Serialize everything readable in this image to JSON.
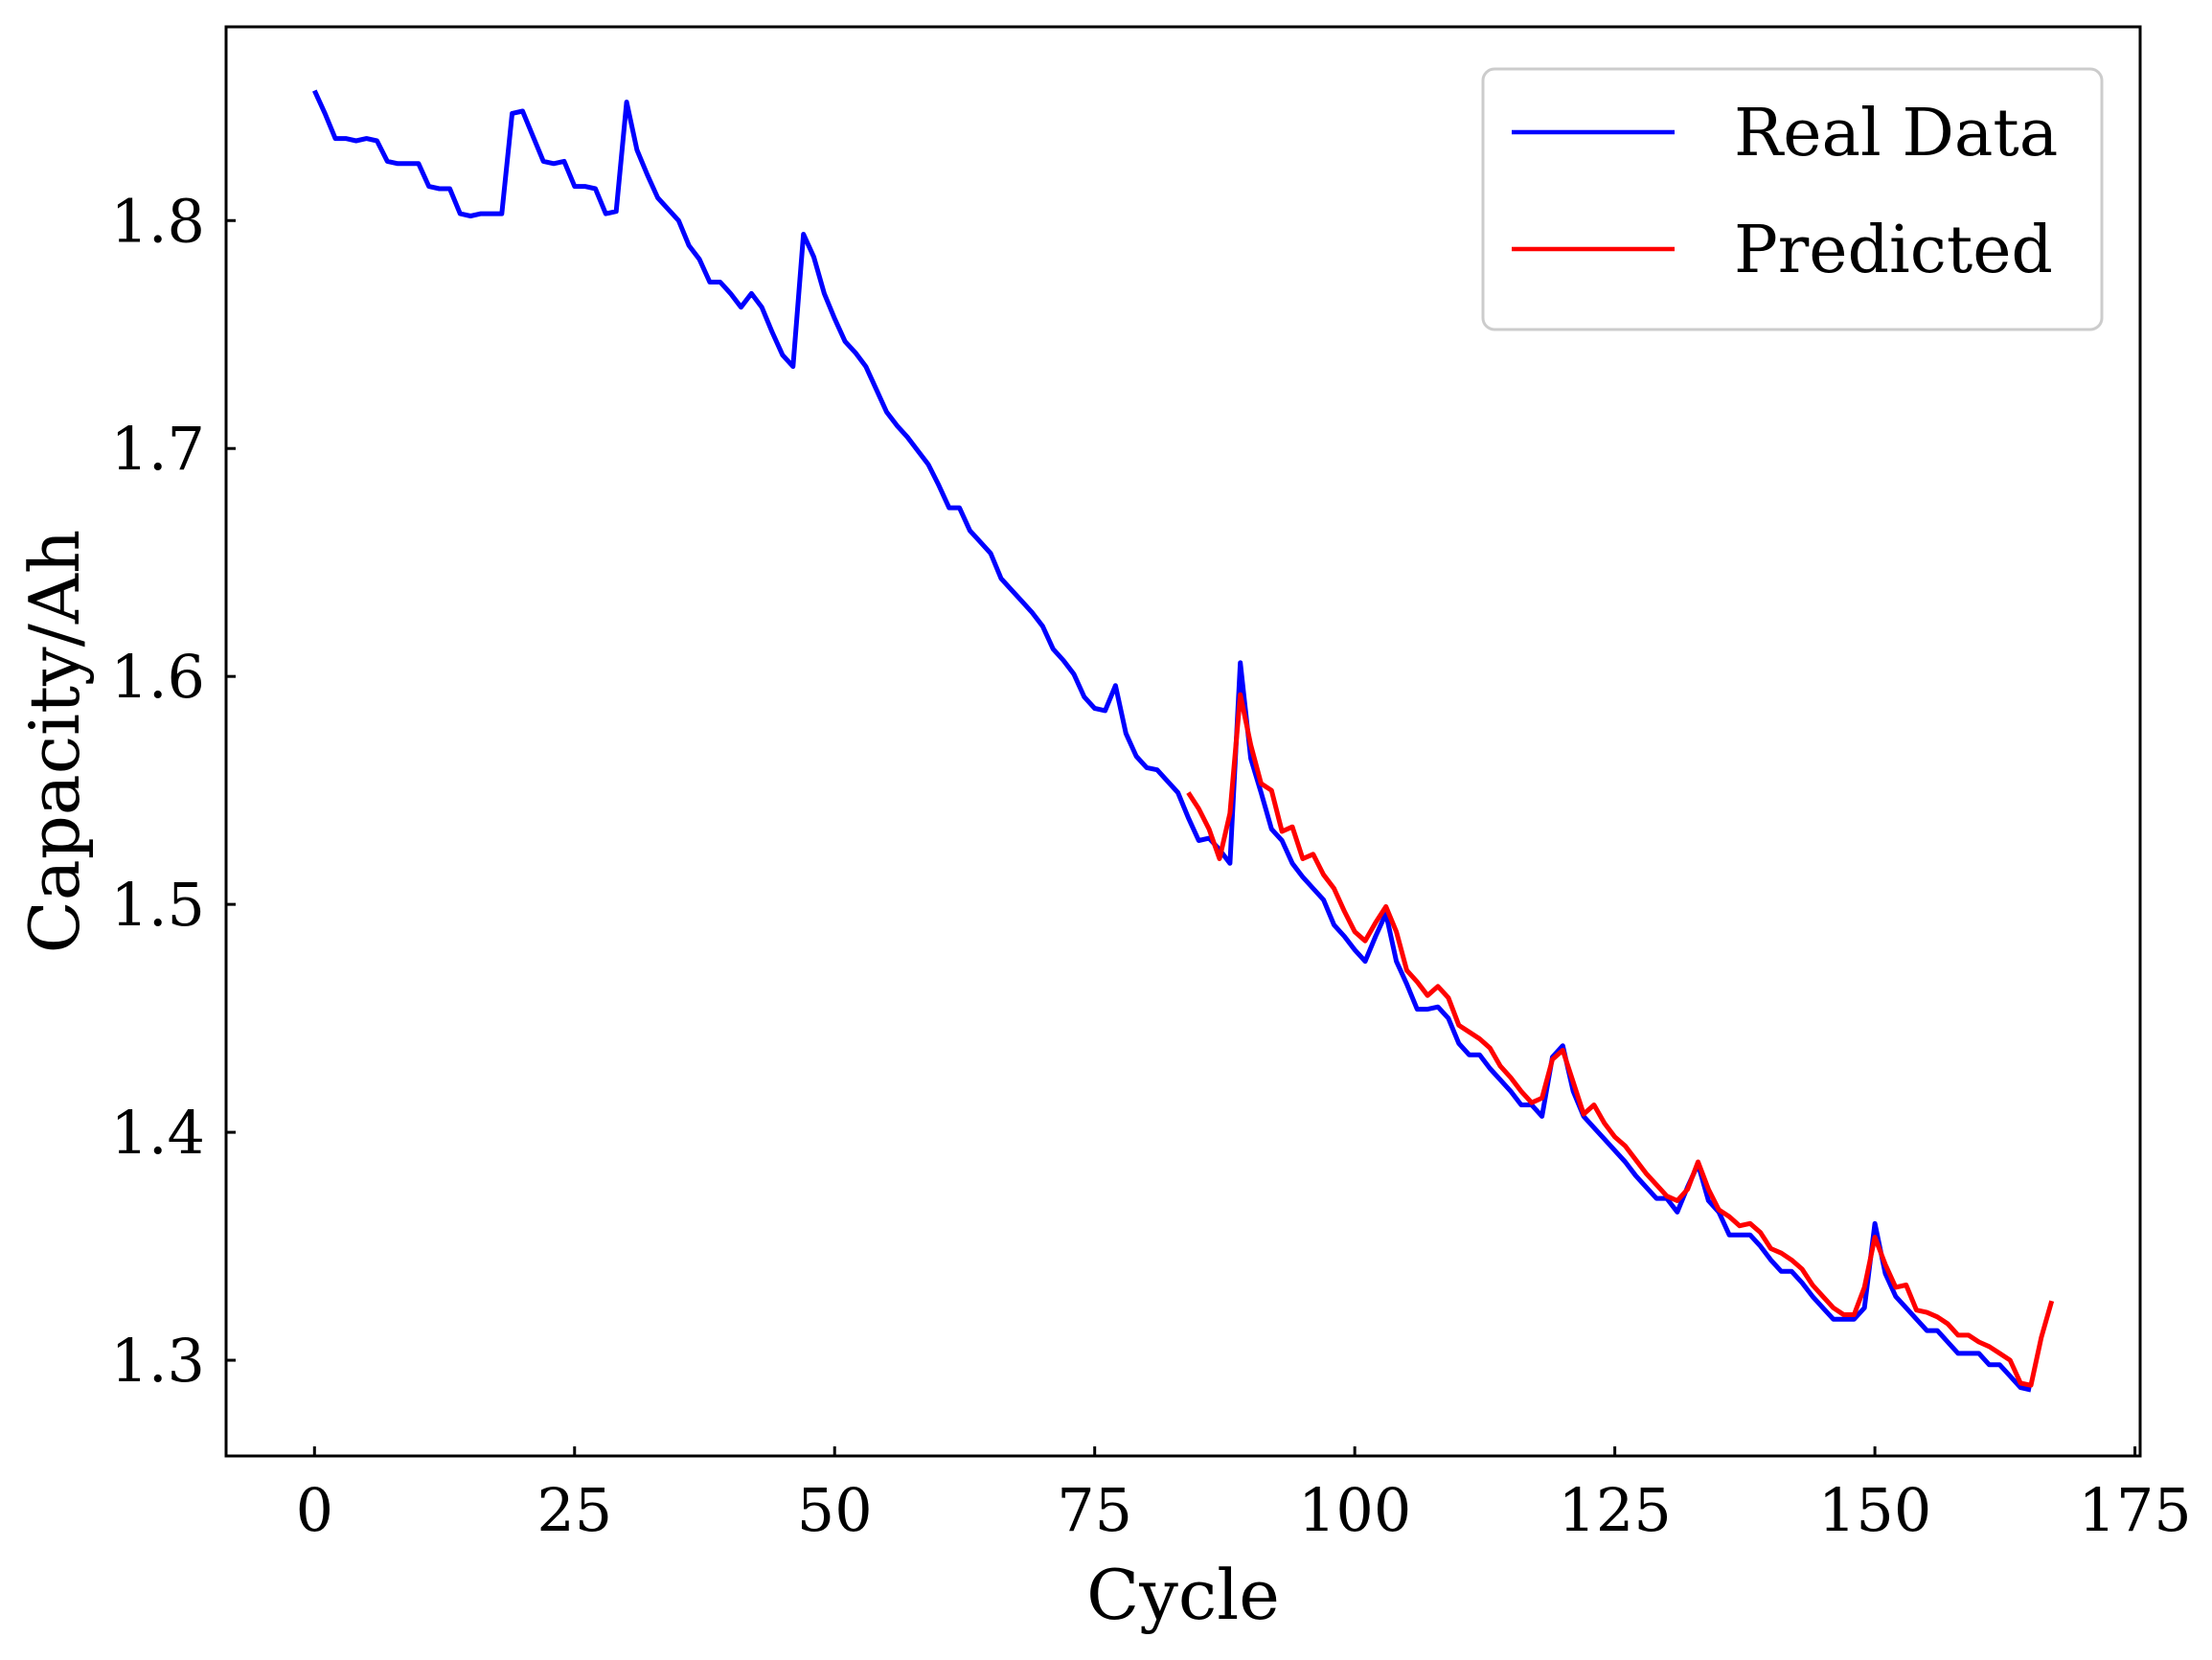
{
  "chart_data": {
    "type": "line",
    "title": "",
    "xlabel": "Cycle",
    "ylabel": "Capacity/Ah",
    "xlim": [
      -8.5,
      175.5
    ],
    "ylim": [
      1.258,
      1.885
    ],
    "xticks": [
      0,
      25,
      50,
      75,
      100,
      125,
      150,
      175
    ],
    "yticks": [
      1.3,
      1.4,
      1.5,
      1.6,
      1.7,
      1.8
    ],
    "xtick_labels": [
      "0",
      "25",
      "50",
      "75",
      "100",
      "125",
      "150",
      "175"
    ],
    "ytick_labels": [
      "1.3",
      "1.4",
      "1.5",
      "1.6",
      "1.7",
      "1.8"
    ],
    "grid": false,
    "legend_position": "top-right",
    "series": [
      {
        "name": "Real Data",
        "color": "#0000ff",
        "x": [
          0,
          1,
          2,
          3,
          4,
          5,
          6,
          7,
          8,
          9,
          10,
          11,
          12,
          13,
          14,
          15,
          16,
          17,
          18,
          19,
          20,
          21,
          22,
          23,
          24,
          25,
          26,
          27,
          28,
          29,
          30,
          31,
          32,
          33,
          34,
          35,
          36,
          37,
          38,
          39,
          40,
          41,
          42,
          43,
          44,
          45,
          46,
          47,
          48,
          49,
          50,
          51,
          52,
          53,
          54,
          55,
          56,
          57,
          58,
          59,
          60,
          61,
          62,
          63,
          64,
          65,
          66,
          67,
          68,
          69,
          70,
          71,
          72,
          73,
          74,
          75,
          76,
          77,
          78,
          79,
          80,
          81,
          82,
          83,
          84,
          85,
          86,
          87,
          88,
          89,
          90,
          91,
          92,
          93,
          94,
          95,
          96,
          97,
          98,
          99,
          100,
          101,
          102,
          103,
          104,
          105,
          106,
          107,
          108,
          109,
          110,
          111,
          112,
          113,
          114,
          115,
          116,
          117,
          118,
          119,
          120,
          121,
          122,
          123,
          124,
          125,
          126,
          127,
          128,
          129,
          130,
          131,
          132,
          133,
          134,
          135,
          136,
          137,
          138,
          139,
          140,
          141,
          142,
          143,
          144,
          145,
          146,
          147,
          148,
          149,
          150,
          151,
          152,
          153,
          154,
          155,
          156,
          157,
          158,
          159,
          160,
          161,
          162,
          163,
          164,
          165
        ],
        "values": [
          1.857,
          1.847,
          1.836,
          1.836,
          1.835,
          1.836,
          1.835,
          1.826,
          1.825,
          1.825,
          1.825,
          1.815,
          1.814,
          1.814,
          1.803,
          1.802,
          1.803,
          1.803,
          1.803,
          1.847,
          1.848,
          1.837,
          1.826,
          1.825,
          1.826,
          1.815,
          1.815,
          1.814,
          1.803,
          1.804,
          1.852,
          1.831,
          1.82,
          1.81,
          1.805,
          1.8,
          1.789,
          1.783,
          1.773,
          1.773,
          1.768,
          1.762,
          1.768,
          1.762,
          1.751,
          1.741,
          1.736,
          1.794,
          1.784,
          1.768,
          1.757,
          1.747,
          1.742,
          1.736,
          1.726,
          1.716,
          1.71,
          1.705,
          1.699,
          1.693,
          1.684,
          1.674,
          1.674,
          1.664,
          1.659,
          1.654,
          1.643,
          1.638,
          1.633,
          1.628,
          1.622,
          1.612,
          1.607,
          1.601,
          1.591,
          1.586,
          1.585,
          1.596,
          1.575,
          1.565,
          1.56,
          1.559,
          1.554,
          1.549,
          1.538,
          1.528,
          1.529,
          1.524,
          1.518,
          1.606,
          1.564,
          1.549,
          1.533,
          1.528,
          1.518,
          1.512,
          1.507,
          1.502,
          1.491,
          1.486,
          1.48,
          1.475,
          1.486,
          1.496,
          1.475,
          1.465,
          1.454,
          1.454,
          1.455,
          1.45,
          1.439,
          1.434,
          1.434,
          1.428,
          1.423,
          1.418,
          1.412,
          1.412,
          1.407,
          1.433,
          1.438,
          1.418,
          1.407,
          1.402,
          1.397,
          1.392,
          1.387,
          1.381,
          1.376,
          1.371,
          1.371,
          1.365,
          1.376,
          1.386,
          1.37,
          1.365,
          1.355,
          1.355,
          1.355,
          1.35,
          1.344,
          1.339,
          1.339,
          1.334,
          1.328,
          1.323,
          1.318,
          1.318,
          1.318,
          1.323,
          1.36,
          1.338,
          1.328,
          1.323,
          1.318,
          1.313,
          1.313,
          1.308,
          1.303,
          1.303,
          1.303,
          1.298,
          1.298,
          1.293,
          1.288,
          1.287
        ]
      },
      {
        "name": "Predicted",
        "color": "#ff0000",
        "x": [
          84,
          85,
          86,
          87,
          88,
          89,
          90,
          91,
          92,
          93,
          94,
          95,
          96,
          97,
          98,
          99,
          100,
          101,
          102,
          103,
          104,
          105,
          106,
          107,
          108,
          109,
          110,
          111,
          112,
          113,
          114,
          115,
          116,
          117,
          118,
          119,
          120,
          121,
          122,
          123,
          124,
          125,
          126,
          127,
          128,
          129,
          130,
          131,
          132,
          133,
          134,
          135,
          136,
          137,
          138,
          139,
          140,
          141,
          142,
          143,
          144,
          145,
          146,
          147,
          148,
          149,
          150,
          151,
          152,
          153,
          154,
          155,
          156,
          157,
          158,
          159,
          160,
          161,
          162,
          163,
          164,
          165,
          166,
          167
        ],
        "values": [
          1.549,
          1.542,
          1.533,
          1.52,
          1.54,
          1.592,
          1.57,
          1.553,
          1.55,
          1.532,
          1.534,
          1.52,
          1.522,
          1.513,
          1.507,
          1.497,
          1.488,
          1.484,
          1.492,
          1.499,
          1.488,
          1.471,
          1.466,
          1.46,
          1.464,
          1.459,
          1.447,
          1.444,
          1.441,
          1.437,
          1.429,
          1.424,
          1.418,
          1.413,
          1.415,
          1.432,
          1.436,
          1.422,
          1.408,
          1.412,
          1.404,
          1.398,
          1.394,
          1.388,
          1.382,
          1.377,
          1.372,
          1.37,
          1.375,
          1.387,
          1.375,
          1.366,
          1.363,
          1.359,
          1.36,
          1.356,
          1.349,
          1.347,
          1.344,
          1.34,
          1.333,
          1.328,
          1.323,
          1.32,
          1.32,
          1.332,
          1.354,
          1.342,
          1.332,
          1.333,
          1.322,
          1.321,
          1.319,
          1.316,
          1.311,
          1.311,
          1.308,
          1.306,
          1.303,
          1.3,
          1.29,
          1.289,
          1.31,
          1.326
        ]
      }
    ]
  }
}
